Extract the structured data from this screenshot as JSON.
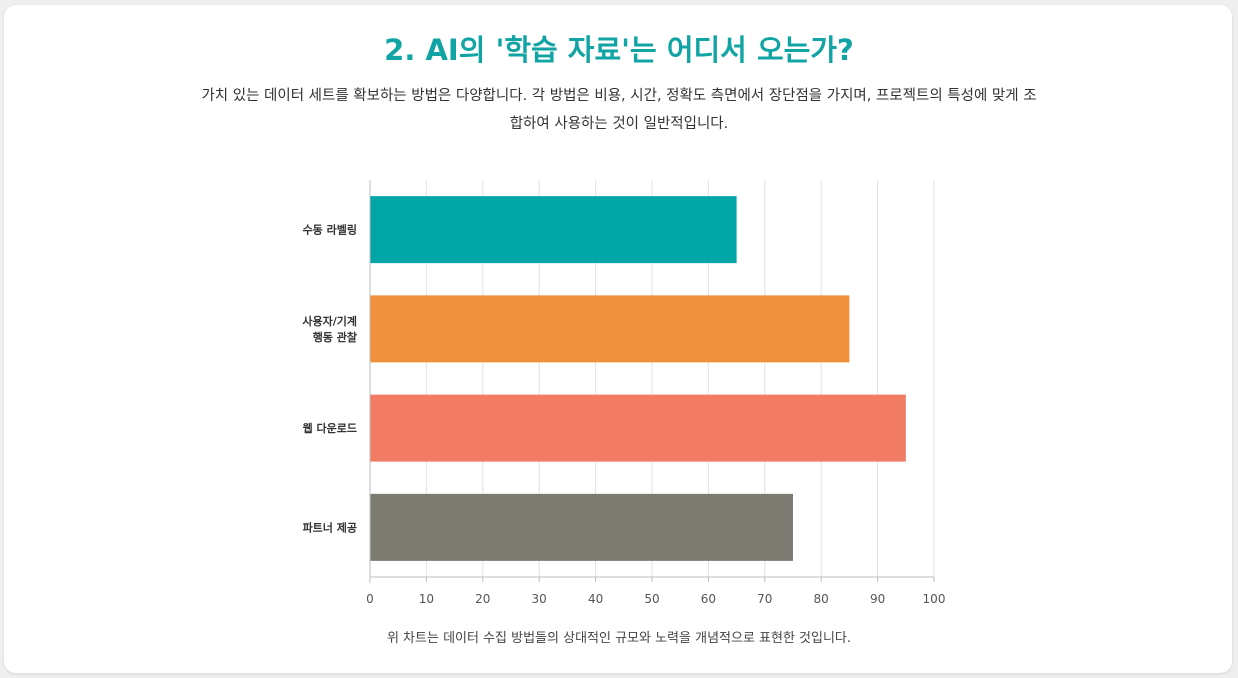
{
  "header": {
    "title": "2. AI의 '학습 자료'는 어디서 오는가?",
    "subtitle": "가치 있는 데이터 세트를 확보하는 방법은 다양합니다. 각 방법은 비용, 시간, 정확도 측면에서 장단점을 가지며, 프로젝트의 특성에 맞게 조합하여 사용하는 것이 일반적입니다."
  },
  "caption": "위 차트는 데이터 수집 방법들의 상대적인 규모와 노력을 개념적으로 표현한 것입니다.",
  "chart_data": {
    "type": "bar",
    "orientation": "horizontal",
    "categories": [
      [
        "수동 라벨링"
      ],
      [
        "사용자/기계",
        "행동 관찰"
      ],
      [
        "웹 다운로드"
      ],
      [
        "파트너 제공"
      ]
    ],
    "values": [
      65,
      85,
      95,
      75
    ],
    "colors": [
      "#00a6a6",
      "#f0913e",
      "#f27b63",
      "#7b7b72"
    ],
    "xlim": [
      0,
      100
    ],
    "xticks": [
      0,
      10,
      20,
      30,
      40,
      50,
      60,
      70,
      80,
      90,
      100
    ],
    "grid": true,
    "legend": "none"
  }
}
